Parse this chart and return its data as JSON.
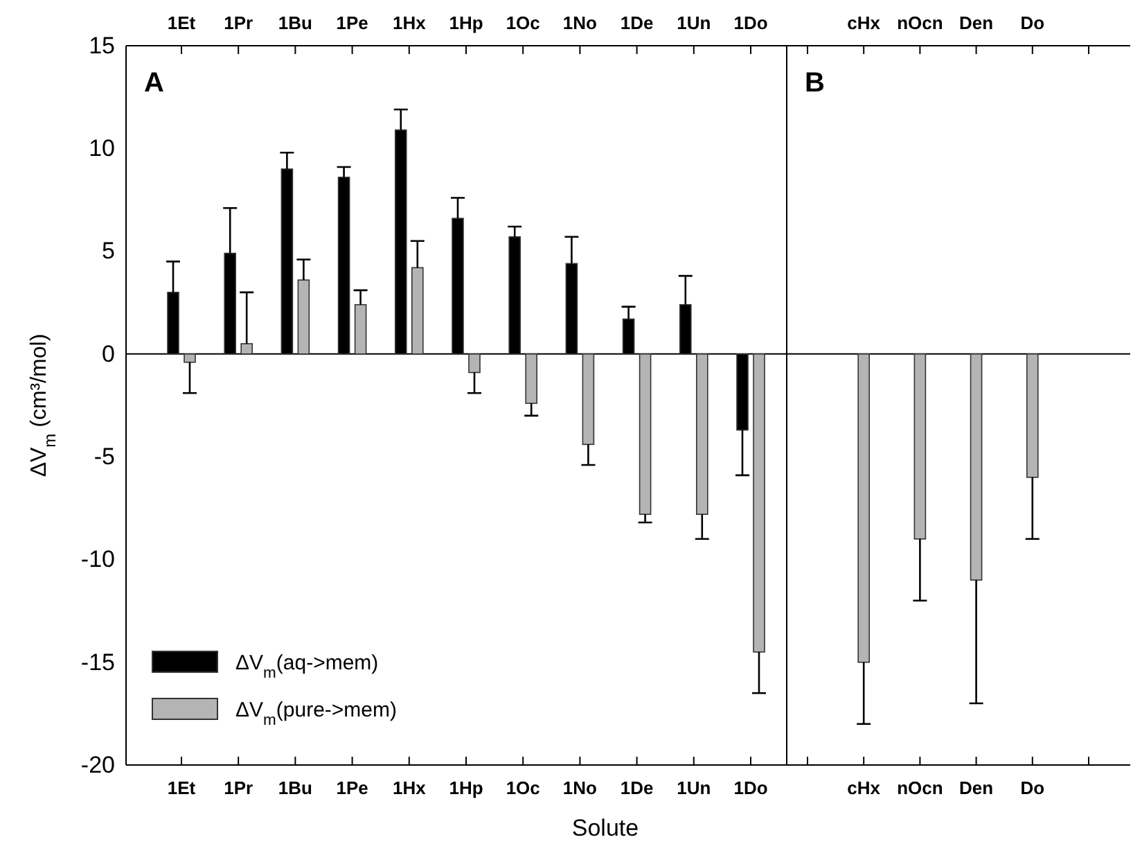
{
  "chart_data": [
    {
      "type": "bar",
      "title": "A",
      "xlabel": "Solute",
      "ylabel": "ΔV$_{m}$  (cm³/mol)",
      "categories": [
        "1Et",
        "1Pr",
        "1Bu",
        "1Pe",
        "1Hx",
        "1Hp",
        "1Oc",
        "1No",
        "1De",
        "1Un",
        "1Do"
      ],
      "ylim": [
        -20,
        15
      ],
      "yticks": [
        -20,
        -15,
        -10,
        -5,
        0,
        5,
        10,
        15
      ],
      "legend": "bottom left",
      "ref_lines": [
        {
          "axis": "y",
          "value": 0,
          "color": "#000000"
        }
      ],
      "series": [
        {
          "name": "ΔV$_{m}$(aq->mem)",
          "color": "#000000",
          "values": [
            3.0,
            4.9,
            9.0,
            8.6,
            10.9,
            6.6,
            5.7,
            4.4,
            1.7,
            2.4,
            -3.7
          ],
          "errors": [
            [
              3.0,
              4.5
            ],
            [
              4.9,
              7.1
            ],
            [
              9.0,
              9.8
            ],
            [
              8.6,
              9.1
            ],
            [
              10.9,
              11.9
            ],
            [
              6.6,
              7.6
            ],
            [
              5.7,
              6.2
            ],
            [
              4.4,
              5.7
            ],
            [
              1.7,
              2.3
            ],
            [
              2.4,
              3.8
            ],
            [
              -5.9,
              -3.7
            ]
          ]
        },
        {
          "name": "ΔV$_{m}$(pure->mem)",
          "color": "#b4b4b4",
          "values": [
            -0.4,
            0.5,
            3.6,
            2.4,
            4.2,
            -0.9,
            -2.4,
            -4.4,
            -7.8,
            -7.8,
            -14.5
          ],
          "errors": [
            [
              -1.9,
              -0.4
            ],
            [
              0.5,
              3.0
            ],
            [
              3.6,
              4.6
            ],
            [
              2.4,
              3.1
            ],
            [
              4.2,
              5.5
            ],
            [
              -1.9,
              -0.9
            ],
            [
              -3.0,
              -2.4
            ],
            [
              -5.4,
              -4.4
            ],
            [
              -8.2,
              -7.8
            ],
            [
              -9.0,
              -7.8
            ],
            [
              -16.5,
              -14.5
            ]
          ]
        }
      ]
    },
    {
      "type": "bar",
      "title": "B",
      "categories": [
        null,
        "cHx",
        "nOcn",
        "Den",
        "Do",
        null
      ],
      "ylim": [
        -20,
        15
      ],
      "tick_labels": "x",
      "ref_lines": [
        {
          "axis": "y",
          "value": 0,
          "color": "#000000"
        }
      ],
      "series": [
        {
          "color": "#b4b4b4",
          "values": [
            null,
            -15,
            -9,
            -11,
            -6,
            null
          ],
          "errors": [
            null,
            [
              -18,
              -15
            ],
            [
              -12,
              -9
            ],
            [
              -17,
              -11
            ],
            [
              -9,
              -6
            ],
            null
          ]
        }
      ]
    }
  ]
}
